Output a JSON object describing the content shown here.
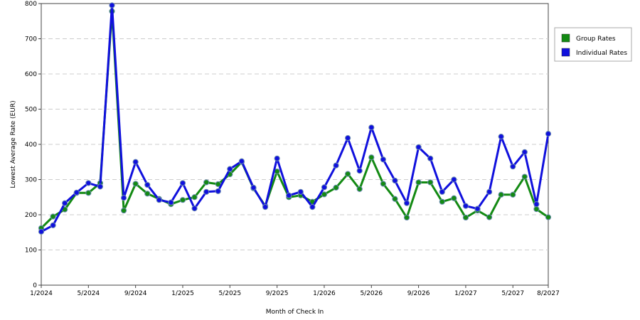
{
  "chart_data": {
    "type": "line",
    "xlabel": "Month of Check In",
    "ylabel": "Lowest Average Rate (EUR)",
    "ylim": [
      0,
      800
    ],
    "yticks": [
      0,
      100,
      200,
      300,
      400,
      500,
      600,
      700,
      800
    ],
    "x_range": [
      "2024-01",
      "2027-08"
    ],
    "x_tick_labels": [
      "1/2024",
      "5/2024",
      "9/2024",
      "1/2025",
      "5/2025",
      "9/2025",
      "1/2026",
      "5/2026",
      "9/2026",
      "1/2027",
      "5/2027",
      "8/2027"
    ],
    "grid": "horizontal dashed",
    "legend": "top-right",
    "x": [
      "2024-01",
      "2024-02",
      "2024-03",
      "2024-04",
      "2024-05",
      "2024-06",
      "2024-07",
      "2024-08",
      "2024-09",
      "2024-10",
      "2024-11",
      "2024-12",
      "2025-01",
      "2025-02",
      "2025-03",
      "2025-04",
      "2025-05",
      "2025-06",
      "2025-07",
      "2025-08",
      "2025-09",
      "2025-10",
      "2025-11",
      "2025-12",
      "2026-01",
      "2026-02",
      "2026-03",
      "2026-04",
      "2026-05",
      "2026-06",
      "2026-07",
      "2026-08",
      "2026-09",
      "2026-10",
      "2026-11",
      "2026-12",
      "2027-01",
      "2027-02",
      "2027-03",
      "2027-04",
      "2027-05",
      "2027-06",
      "2027-07",
      "2027-08"
    ],
    "series": [
      {
        "name": "Group Rates",
        "color": "#138a13",
        "values": [
          162,
          195,
          215,
          262,
          262,
          290,
          778,
          212,
          288,
          260,
          245,
          230,
          242,
          250,
          292,
          287,
          315,
          350,
          275,
          225,
          323,
          250,
          255,
          237,
          258,
          277,
          316,
          273,
          363,
          288,
          245,
          192,
          292,
          292,
          237,
          247,
          192,
          212,
          193,
          257,
          257,
          308,
          216,
          193
        ]
      },
      {
        "name": "Individual Rates",
        "color": "#1010dd",
        "values": [
          152,
          170,
          233,
          263,
          290,
          280,
          795,
          248,
          350,
          285,
          242,
          235,
          290,
          218,
          265,
          267,
          330,
          352,
          277,
          222,
          360,
          255,
          265,
          222,
          278,
          340,
          418,
          325,
          448,
          357,
          297,
          233,
          392,
          360,
          265,
          300,
          225,
          217,
          265,
          422,
          337,
          378,
          230,
          430
        ]
      }
    ]
  }
}
